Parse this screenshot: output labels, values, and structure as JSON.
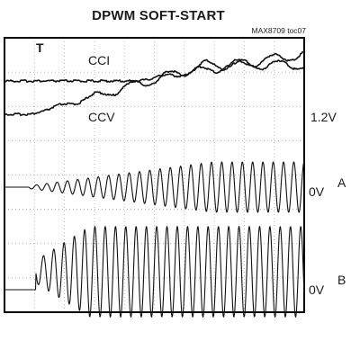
{
  "title": "DPWM SOFT-START",
  "figure_code": "MAX8709 toc07",
  "trigger_marker": "T",
  "chart_data": {
    "type": "line",
    "title": "DPWM SOFT-START",
    "grid": true,
    "grid_divisions": {
      "x": 10,
      "y": 8
    },
    "traces": [
      {
        "name": "CCI",
        "channel_label": "",
        "level_label": "",
        "kind": "ramp"
      },
      {
        "name": "CCV",
        "channel_label": "",
        "level_label": "1.2V",
        "kind": "ramp"
      },
      {
        "name": "",
        "channel_label": "A",
        "level_label": "0V",
        "kind": "sine"
      },
      {
        "name": "",
        "channel_label": "B",
        "level_label": "0V",
        "kind": "sine"
      }
    ]
  },
  "colors": {
    "trace": "#111111",
    "grid": "#9a9a9a",
    "frame": "#000000"
  }
}
